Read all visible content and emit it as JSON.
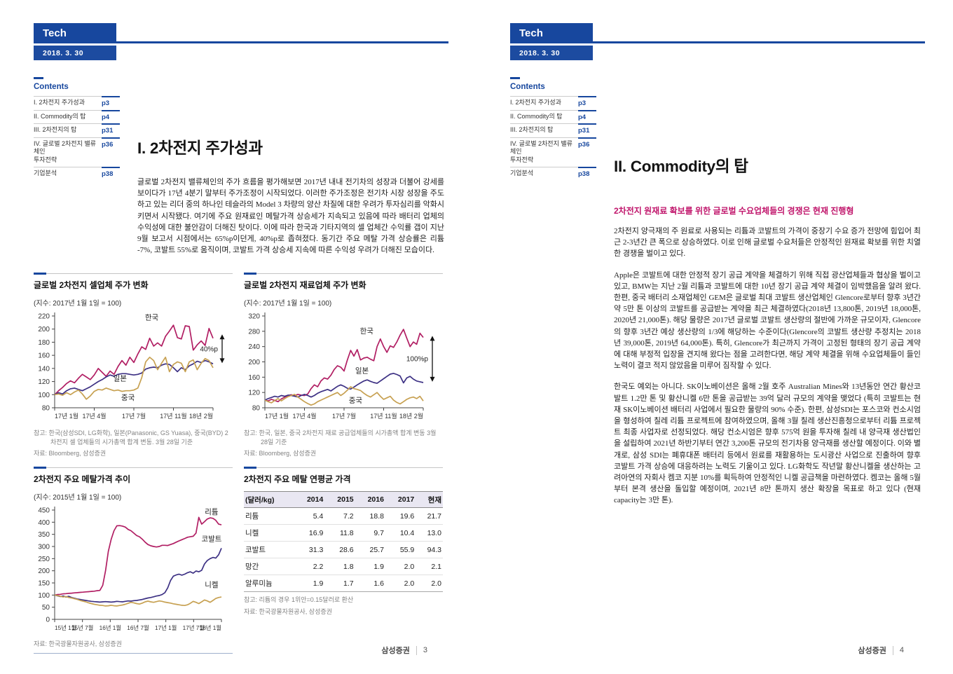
{
  "shared": {
    "tag": "Tech",
    "date": "2018. 3. 30",
    "contents_title": "Contents",
    "contents": [
      {
        "label": "I. 2차전지 주가성과",
        "page": "p3"
      },
      {
        "label": "II. Commodity의 탑",
        "page": "p4"
      },
      {
        "label": "III. 2차전지의 탑",
        "page": "p31"
      },
      {
        "label": "IV. 글로벌 2차전지 밸류체인\n투자전략",
        "page": "p36"
      },
      {
        "label": "기업분석",
        "page": "p38"
      }
    ],
    "footer_brand": "삼성증권",
    "accent_blue": "#17479e",
    "accent_magenta": "#c0156b"
  },
  "page3": {
    "page_no": "3",
    "title": "I. 2차전지 주가성과",
    "body": "글로벌 2차전지 밸류체인의 주가 흐름을 평가해보면 2017년 내내 전기차의 성장과 더불어 강세를 보이다가 17년 4분기 말부터 주가조정이 시작되었다. 이러한 주가조정은 전기차 시장 성장을 주도하고 있는 리더 중의 하나인 테슬라의 Model 3 차량의 양산 차질에 대한 우려가 투자심리를 악화시키면서 시작됐다. 여기에 주요 원재료인 메탈가격 상승세가 지속되고 있음에 따라 배터리 업체의 수익성에 대한 불안감이 더해진 탓이다. 이에 따라 한국과 기타지역의 셀 업체간 수익률 갭이 지난 9월 보고서 시점에서는 65%p이던게, 40%p로 좁혀졌다. 동기간 주요 메탈 가격 상승률은 리튬 -7%, 코발트 55%로 움직이며, 코발트 가격 상승세 지속에 따른 수익성 우려가 더해진 모습이다.",
    "figures": {
      "fig1": {
        "title": "글로벌 2차전지 셀업체 주가 변화",
        "subtitle": "(지수: 2017년 1월 1일 = 100)",
        "note": "참고: 한국(삼성SDI, LG화학), 일본(Panasonic, GS Yuasa), 중국(BYD) 2차전지 셀 업체들의 시가총액 합계 변동. 3월 28일 기준",
        "source": "자료: Bloomberg, 삼성증권"
      },
      "fig2": {
        "title": "글로벌 2차전지 재료업체 주가 변화",
        "subtitle": "(지수: 2017년 1월 1일 = 100)",
        "note": "참고: 한국, 일본, 중국 2차전지 재료 공급업체들의 시가총액 합계 변동 3월 28일 기준",
        "source": "자료: Bloomberg, 삼성증권"
      },
      "fig3": {
        "title": "2차전지 주요 메탈가격 추이",
        "subtitle": "(지수: 2015년 1월 1일 = 100)",
        "source": "자료: 한국광물자원공사, 삼성증권"
      },
      "fig4": {
        "title": "2차전지 주요 메탈 연평균 가격",
        "note": "참고: 리튬의 경우 1위안=0.15달러로 환산",
        "source": "자료: 한국광물자원공사, 삼성증권"
      }
    }
  },
  "page4": {
    "page_no": "4",
    "title": "II. Commodity의 탑",
    "subtitle": "2차전지 원재료 확보를 위한 글로벌 수요업체들의 경쟁은 현재 진행형",
    "paragraphs": [
      "2차전지 양극재의 주 원료로 사용되는 리튬과 코발트의 가격이 중장기 수요 증가 전망에 힘입어 최근 2-3년간 큰 폭으로 상승하였다. 이로 인해 글로벌 수요처들은 안정적인 원재료 확보를 위한 치열한 경쟁을 벌이고 있다.",
      "Apple은 코발트에 대한 안정적 장기 공급 계약을 체결하기 위해 직접 광산업체들과 협상을 벌이고 있고, BMW는 지난 2월 리튬과 코발트에 대한 10년 장기 공급 계약 체결이 임박했음을 알려 왔다. 한편, 중국 배터리 소재업체인 GEM은 글로벌 최대 코발트 생산업체인 Glencore로부터 향후 3년간 약 5만 톤 이상의 코발트를 공급받는 계약을 최근 체결하였다(2018년 13,800톤, 2019년 18,000톤, 2020년 21,000톤). 해당 물량은 2017년 글로벌 코발트 생산량의 절반에 가까운 규모이자, Glencore의 향후 3년간 예상 생산량의 1/3에 해당하는 수준이다(Glencore의 코발트 생산량 추정치는 2018년 39,000톤, 2019년 64,000톤). 특히, Glencore가 최근까지 가격이 고정된 형태의 장기 공급 계약에 대해 부정적 입장을 견지해 왔다는 점을 고려한다면, 해당 계약 체결을 위해 수요업체들이 들인 노력이 결코 적지 않았음을 미루어 짐작할 수 있다.",
      "한국도 예외는 아니다. SK이노베이션은 올해 2월 호주 Australian Mines와 13년동안 연간 황산코발트 1.2만 톤 및 황산니켈 6만 톤을 공급받는 39억 달러 규모의 계약을 맺었다 (특히 코발트는 현재 SK이노베이션 배터리 사업에서 필요한 물량의 90% 수준). 한편, 삼성SDI는 포스코와 컨소시엄을 형성하여 칠레 리튬 프로젝트에 참여하였으며, 올해 3월 칠레 생산진흥청으로부터 리튬 프로젝트 최종 사업자로 선정되었다. 해당 컨소시엄은 향후 575억 원을 투자해 칠레 내 양극재 생산법인을 설립하여 2021년 하반기부터 연간 3,200톤 규모의 전기차용 양극재를 생산할 예정이다. 이와 별개로, 삼성 SDI는 폐휴대폰 배터리 등에서 원료를 재활용하는 도시광산 사업으로 진출하여 향후 코발트 가격 상승에 대응하려는 노력도 기울이고 있다. LG화학도 작년말 황산니켈을 생산하는 고려아연의 자회사 켐코 지분 10%를 획득하여 안정적인 니켈 공급책을 마련하였다. 켐코는 올해 5월부터 본격 생산을 돌입할 예정이며, 2021년 8만 톤까지 생산 확장을 목표로 하고 있다 (현재 capacity는 3만 톤)."
    ]
  },
  "chart_data": [
    {
      "type": "line",
      "title": "글로벌 2차전지 셀업체 주가 변화",
      "index_note": "(지수: 2017년 1월 1일 = 100)",
      "ylim": [
        80,
        220
      ],
      "yticks": [
        80,
        100,
        120,
        140,
        160,
        180,
        200,
        220
      ],
      "xticklabels": [
        "17년 1월",
        "17년 4월",
        "17년 7월",
        "17년 11월",
        "18년 2월"
      ],
      "legend_position": "inline-labels",
      "grid": false,
      "series": [
        {
          "name": "한국",
          "color": "#b11e63",
          "values": [
            100,
            106,
            111,
            117,
            121,
            118,
            125,
            131,
            127,
            123,
            130,
            140,
            134,
            128,
            136,
            131,
            143,
            152,
            145,
            157,
            149,
            162,
            173,
            169,
            186,
            174,
            179,
            174,
            189,
            197,
            206,
            187,
            185,
            205,
            204,
            168,
            176,
            182,
            175,
            201,
            186
          ]
        },
        {
          "name": "일본",
          "color": "#3d3184",
          "values": [
            100,
            103,
            101,
            106,
            109,
            110,
            108,
            106,
            109,
            112,
            116,
            120,
            123,
            127,
            130,
            128,
            131,
            132,
            132,
            131,
            130,
            131,
            133,
            139,
            141,
            142,
            141,
            145,
            147,
            146,
            141,
            135,
            141,
            138,
            144,
            147,
            151,
            149,
            152,
            150,
            147
          ]
        },
        {
          "name": "중국",
          "color": "#c7a152",
          "values": [
            100,
            101,
            99,
            103,
            100,
            104,
            107,
            101,
            93,
            98,
            105,
            108,
            107,
            110,
            108,
            106,
            107,
            105,
            106,
            106,
            107,
            110,
            126,
            150,
            157,
            152,
            138,
            148,
            157,
            135,
            146,
            150,
            148,
            135,
            150,
            153,
            138,
            148,
            155,
            152,
            141
          ]
        }
      ],
      "series_labels": [
        {
          "text": "한국",
          "fx": 0.57,
          "val": 214
        },
        {
          "text": "일본",
          "fx": 0.37,
          "val": 121
        },
        {
          "text": "중국",
          "fx": 0.42,
          "val": 92
        }
      ],
      "annotation": {
        "label": "40%p",
        "from": 148,
        "to": 192
      }
    },
    {
      "type": "line",
      "title": "글로벌 2차전지 재료업체 주가 변화",
      "index_note": "(지수: 2017년 1월 1일 = 100)",
      "ylim": [
        80,
        320
      ],
      "yticks": [
        80,
        120,
        160,
        200,
        240,
        280,
        320
      ],
      "xticklabels": [
        "17년 1월",
        "17년 4월",
        "17년 7월",
        "17년 11월",
        "18년 2월"
      ],
      "legend_position": "inline-labels",
      "grid": false,
      "series": [
        {
          "name": "한국",
          "color": "#b11e63",
          "values": [
            100,
            98,
            102,
            99,
            96,
            103,
            108,
            112,
            114,
            112,
            115,
            113,
            112,
            116,
            130,
            140,
            135,
            150,
            158,
            155,
            165,
            180,
            190,
            186,
            176,
            205,
            230,
            215,
            232,
            205,
            210,
            212,
            207,
            203,
            240,
            260,
            240,
            225,
            242,
            238,
            252,
            270,
            285,
            262,
            240,
            252,
            246,
            275,
            264
          ]
        },
        {
          "name": "일본",
          "color": "#3d3184",
          "values": [
            100,
            104,
            107,
            110,
            108,
            112,
            110,
            113,
            112,
            110,
            108,
            112,
            115,
            112,
            108,
            112,
            118,
            122,
            125,
            128,
            124,
            130,
            136,
            140,
            136,
            131,
            129,
            134,
            140,
            145,
            150,
            153,
            149,
            146,
            144,
            150,
            156,
            162,
            168,
            170,
            167,
            163,
            145,
            158,
            162,
            155,
            150,
            148,
            146
          ]
        },
        {
          "name": "중국",
          "color": "#c7a152",
          "values": [
            100,
            96,
            93,
            99,
            104,
            98,
            104,
            109,
            112,
            115,
            108,
            102,
            96,
            91,
            87,
            90,
            96,
            100,
            104,
            108,
            112,
            116,
            120,
            112,
            118,
            126,
            135,
            130,
            128,
            125,
            118,
            112,
            108,
            114,
            120,
            110,
            102,
            106,
            110,
            100,
            94,
            90,
            96,
            102,
            106,
            108,
            104,
            110,
            98
          ]
        }
      ],
      "series_labels": [
        {
          "text": "한국",
          "fx": 0.6,
          "val": 274
        },
        {
          "text": "일본",
          "fx": 0.57,
          "val": 171
        },
        {
          "text": "중국",
          "fx": 0.53,
          "val": 93
        }
      ],
      "annotation": {
        "label": "100%p",
        "from": 148,
        "to": 268
      }
    },
    {
      "type": "line",
      "title": "2차전지 주요 메탈가격 추이",
      "index_note": "(지수: 2015년 1월 1일 = 100)",
      "ylim": [
        0,
        450
      ],
      "yticks": [
        0,
        50,
        100,
        150,
        200,
        250,
        300,
        350,
        400,
        450
      ],
      "xticklabels": [
        "15년 1월",
        "15년 7월",
        "16년 1월",
        "16년 7월",
        "17년 1월",
        "17년 7월",
        "18년 1월"
      ],
      "legend_position": "inline-labels",
      "grid": false,
      "series": [
        {
          "name": "리튬",
          "color": "#b11e63",
          "values": [
            100,
            102,
            103,
            105,
            106,
            107,
            108,
            109,
            110,
            111,
            112,
            113,
            114,
            115,
            116,
            118,
            119,
            140,
            200,
            280,
            330,
            365,
            385,
            386,
            384,
            380,
            370,
            365,
            355,
            345,
            340,
            330,
            318,
            308,
            303,
            300,
            298,
            300,
            305,
            305,
            304,
            308,
            312,
            318,
            323,
            328,
            333,
            338,
            340,
            342,
            355,
            420,
            392,
            402,
            413,
            418,
            416,
            408,
            392,
            389
          ]
        },
        {
          "name": "코발트",
          "color": "#3d3184",
          "values": [
            100,
            97,
            94,
            96,
            92,
            95,
            90,
            87,
            84,
            82,
            80,
            78,
            76,
            74,
            73,
            72,
            71,
            72,
            73,
            72,
            71,
            72,
            74,
            73,
            72,
            74,
            76,
            75,
            77,
            78,
            80,
            82,
            85,
            88,
            90,
            93,
            96,
            98,
            102,
            110,
            130,
            160,
            178,
            183,
            186,
            182,
            186,
            192,
            196,
            190,
            199,
            196,
            202,
            228,
            242,
            250,
            255,
            252,
            266,
            293
          ]
        },
        {
          "name": "니켈",
          "color": "#c7a152",
          "values": [
            100,
            98,
            95,
            92,
            94,
            90,
            88,
            85,
            82,
            78,
            75,
            72,
            68,
            65,
            62,
            60,
            58,
            57,
            55,
            56,
            58,
            56,
            55,
            57,
            59,
            62,
            66,
            70,
            68,
            65,
            63,
            67,
            72,
            75,
            72,
            70,
            73,
            76,
            74,
            71,
            69,
            67,
            64,
            62,
            60,
            58,
            57,
            60,
            66,
            74,
            70,
            65,
            72,
            80,
            76,
            70,
            78,
            86,
            90,
            92
          ]
        }
      ],
      "series_labels": [
        {
          "text": "리튬",
          "fx": 0.9,
          "val": 432
        },
        {
          "text": "코발트",
          "fx": 0.88,
          "val": 322
        },
        {
          "text": "니켈",
          "fx": 0.9,
          "val": 132
        }
      ]
    },
    {
      "type": "table",
      "title": "2차전지 주요 메탈 연평균 가격",
      "columns": [
        "(달러/kg)",
        "2014",
        "2015",
        "2016",
        "2017",
        "현재"
      ],
      "rows": [
        [
          "리튬",
          "5.4",
          "7.2",
          "18.8",
          "19.6",
          "21.7"
        ],
        [
          "니켈",
          "16.9",
          "11.8",
          "9.7",
          "10.4",
          "13.0"
        ],
        [
          "코발트",
          "31.3",
          "28.6",
          "25.7",
          "55.9",
          "94.3"
        ],
        [
          "망간",
          "2.2",
          "1.8",
          "1.9",
          "2.0",
          "2.1"
        ],
        [
          "알루미늄",
          "1.9",
          "1.7",
          "1.6",
          "2.0",
          "2.0"
        ]
      ]
    }
  ]
}
